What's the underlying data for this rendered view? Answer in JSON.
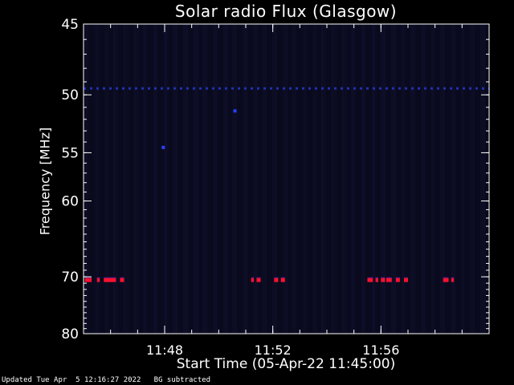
{
  "chart_data": {
    "type": "heatmap",
    "title": "Solar radio Flux (Glasgow)",
    "xlabel": "Start Time (05-Apr-22 11:45:00)",
    "ylabel": "Frequency [MHz]",
    "x_range_minutes_after_11_45": [
      0,
      15
    ],
    "x_ticks": [
      {
        "label": "11:48",
        "minute": 3
      },
      {
        "label": "11:52",
        "minute": 7
      },
      {
        "label": "11:56",
        "minute": 11
      }
    ],
    "y_range_mhz": [
      45,
      80
    ],
    "y_ticks": [
      {
        "label": "45",
        "mhz": 45
      },
      {
        "label": "50",
        "mhz": 50
      },
      {
        "label": "55",
        "mhz": 55
      },
      {
        "label": "60",
        "mhz": 60
      },
      {
        "label": "70",
        "mhz": 70
      },
      {
        "label": "80",
        "mhz": 80
      }
    ],
    "background_color": "#0a0a1e",
    "hot_color": "#ff1030",
    "line_color": "#2030b0",
    "features": {
      "band_49_5": {
        "mhz": 49.5,
        "intensity": "low",
        "from_minute": 0,
        "to_minute": 15
      },
      "band_70_5_bursts": {
        "mhz": 70.5,
        "intensity": "high",
        "segments_minutes": [
          [
            0.05,
            0.3
          ],
          [
            0.5,
            0.6
          ],
          [
            0.75,
            1.2
          ],
          [
            1.35,
            1.5
          ],
          [
            6.2,
            6.3
          ],
          [
            6.4,
            6.55
          ],
          [
            7.05,
            7.2
          ],
          [
            7.3,
            7.45
          ],
          [
            10.5,
            10.7
          ],
          [
            10.8,
            10.9
          ],
          [
            11.0,
            11.15
          ],
          [
            11.2,
            11.4
          ],
          [
            11.55,
            11.7
          ],
          [
            11.85,
            12.0
          ],
          [
            13.3,
            13.5
          ],
          [
            13.6,
            13.7
          ]
        ]
      },
      "dots": [
        {
          "minute": 2.95,
          "mhz": 54.5
        },
        {
          "minute": 5.6,
          "mhz": 51.3
        }
      ]
    }
  },
  "footer": "Updated Tue Apr  5 12:16:27 2022   BG subtracted"
}
